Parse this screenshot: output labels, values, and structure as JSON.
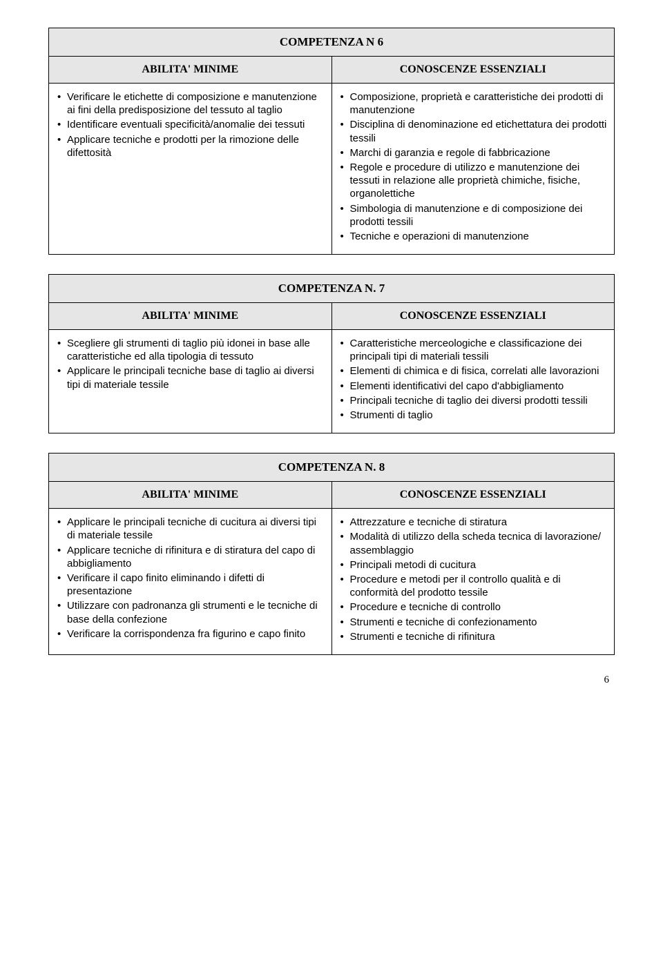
{
  "page_number": "6",
  "colors": {
    "header_bg": "#e6e6e6",
    "border": "#000000",
    "text": "#000000",
    "page_bg": "#ffffff"
  },
  "sections": [
    {
      "title": "COMPETENZA N 6",
      "left_header": "ABILITA' MINIME",
      "right_header": "CONOSCENZE ESSENZIALI",
      "left_items": [
        "Verificare le etichette di composizione e manutenzione ai fini della predisposizione del tessuto al taglio",
        "Identificare eventuali specificità/anomalie dei tessuti",
        "Applicare tecniche e prodotti per la rimozione delle difettosità"
      ],
      "right_items": [
        "Composizione, proprietà e caratteristiche dei prodotti di manutenzione",
        "Disciplina di denominazione ed etichettatura dei prodotti tessili",
        "Marchi di garanzia e regole di fabbricazione",
        "Regole e procedure di utilizzo e manutenzione dei tessuti in relazione alle proprietà chimiche, fisiche, organolettiche",
        "Simbologia di manutenzione e di composizione dei prodotti tessili",
        "Tecniche e operazioni di manutenzione"
      ]
    },
    {
      "title": "COMPETENZA N. 7",
      "left_header": "ABILITA' MINIME",
      "right_header": "CONOSCENZE ESSENZIALI",
      "left_items": [
        "Scegliere gli strumenti di taglio più idonei in base alle caratteristiche ed alla tipologia di tessuto",
        "Applicare le principali tecniche base di taglio ai diversi tipi di materiale tessile"
      ],
      "right_items": [
        "Caratteristiche merceologiche e classificazione dei principali tipi di materiali tessili",
        "Elementi di chimica e di fisica, correlati alle lavorazioni",
        "Elementi identificativi del capo d'abbigliamento",
        "Principali tecniche di taglio dei diversi prodotti tessili",
        "Strumenti di taglio"
      ]
    },
    {
      "title": "COMPETENZA N. 8",
      "left_header": "ABILITA' MINIME",
      "right_header": "CONOSCENZE ESSENZIALI",
      "left_items": [
        "Applicare le principali tecniche di cucitura ai diversi tipi di materiale tessile",
        "Applicare tecniche di rifinitura e di stiratura del capo di abbigliamento",
        "Verificare il capo finito eliminando i difetti di presentazione",
        "Utilizzare con padronanza gli strumenti e le tecniche di base della confezione",
        "Verificare la corrispondenza fra figurino e capo finito"
      ],
      "right_items": [
        "Attrezzature e tecniche di stiratura",
        "Modalità di utilizzo della scheda tecnica di lavorazione/ assemblaggio",
        "Principali metodi di cucitura",
        "Procedure e metodi per il controllo qualità e di conformità del prodotto tessile",
        "Procedure e tecniche di controllo",
        "Strumenti e tecniche di confezionamento",
        "Strumenti e tecniche di rifinitura"
      ]
    }
  ]
}
